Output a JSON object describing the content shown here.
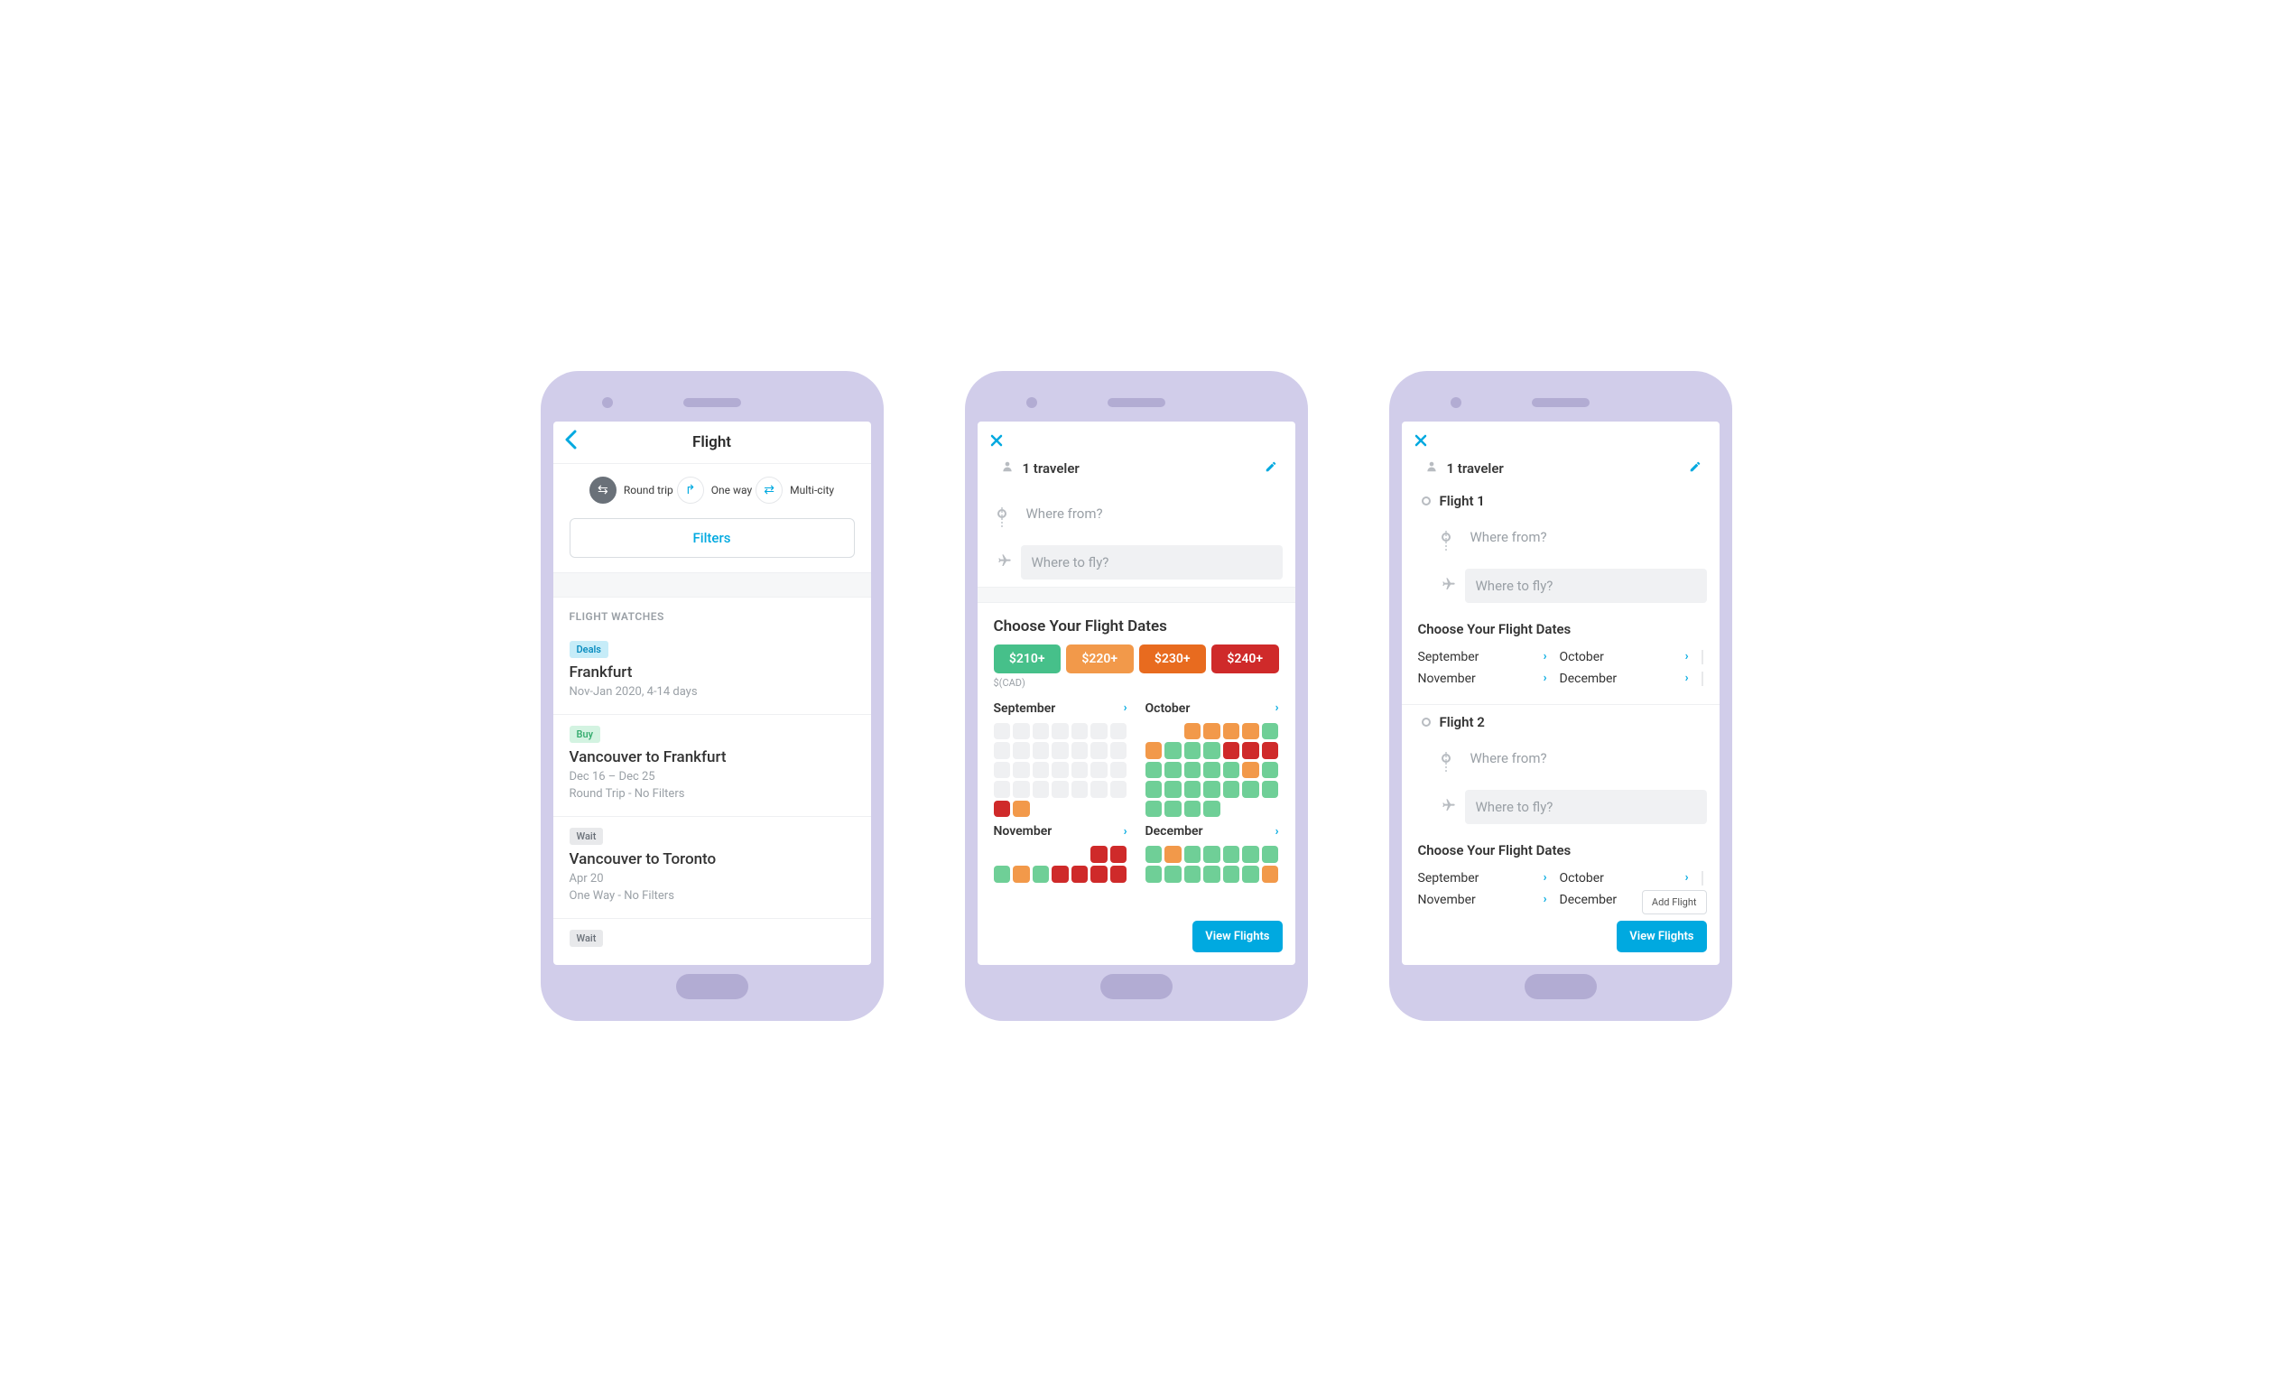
{
  "colors": {
    "accent": "#00a9e0",
    "phone_body": "#d1cdea",
    "phone_shadow": "#b2acd3",
    "cal_empty": "#eff0f2",
    "cal_green": "#6fcf97",
    "cal_orange": "#f2994a",
    "cal_red": "#cf2a2a",
    "badge_deals_bg": "#c6ecf8",
    "badge_buy_bg": "#d3f3e1",
    "badge_wait_bg": "#e8e9eb"
  },
  "screen1": {
    "title": "Flight",
    "trip_types": {
      "round": "Round trip",
      "oneway": "One way",
      "multi": "Multi-city"
    },
    "filters_label": "Filters",
    "watches_label": "FLIGHT WATCHES",
    "watches": [
      {
        "badge": "Deals",
        "badge_class": "badge-deals",
        "title": "Frankfurt",
        "sub1": "Nov-Jan 2020, 4-14 days",
        "sub2": ""
      },
      {
        "badge": "Buy",
        "badge_class": "badge-buy",
        "title": "Vancouver to Frankfurt",
        "sub1": "Dec 16 – Dec 25",
        "sub2": "Round Trip - No Filters"
      },
      {
        "badge": "Wait",
        "badge_class": "badge-wait",
        "title": "Vancouver to Toronto",
        "sub1": "Apr 20",
        "sub2": "One Way - No Filters"
      },
      {
        "badge": "Wait",
        "badge_class": "badge-wait",
        "title": "",
        "sub1": "",
        "sub2": ""
      }
    ]
  },
  "screen2": {
    "traveler": "1 traveler",
    "from_placeholder": "Where from?",
    "to_placeholder": "Where to fly?",
    "dates_title": "Choose Your Flight Dates",
    "currency_note": "$(CAD)",
    "price_chips": [
      {
        "label": "$210+",
        "color": "#46c08a"
      },
      {
        "label": "$220+",
        "color": "#f2994a"
      },
      {
        "label": "$230+",
        "color": "#e86b1f"
      },
      {
        "label": "$240+",
        "color": "#cf2a2a"
      }
    ],
    "months": [
      {
        "name": "September",
        "grid": [
          "e",
          "e",
          "e",
          "e",
          "e",
          "e",
          "e",
          "e",
          "e",
          "e",
          "e",
          "e",
          "e",
          "e",
          "e",
          "e",
          "e",
          "e",
          "e",
          "e",
          "e",
          "e",
          "e",
          "e",
          "e",
          "e",
          "e",
          "e",
          "r",
          "o",
          "b",
          "b",
          "b",
          "b",
          "b"
        ]
      },
      {
        "name": "October",
        "grid": [
          "b",
          "b",
          "o",
          "o",
          "o",
          "o",
          "g",
          "o",
          "g",
          "g",
          "g",
          "r",
          "r",
          "r",
          "g",
          "g",
          "g",
          "g",
          "g",
          "o",
          "g",
          "g",
          "g",
          "g",
          "g",
          "g",
          "g",
          "g",
          "g",
          "g",
          "g",
          "g",
          "b",
          "b",
          "b"
        ]
      },
      {
        "name": "November",
        "grid": [
          "b",
          "b",
          "b",
          "b",
          "b",
          "r",
          "r",
          "g",
          "o",
          "g",
          "r",
          "r",
          "r",
          "r"
        ]
      },
      {
        "name": "December",
        "grid": [
          "g",
          "o",
          "g",
          "g",
          "g",
          "g",
          "g",
          "g",
          "g",
          "g",
          "g",
          "g",
          "g",
          "o"
        ]
      }
    ],
    "view_btn": "View Flights"
  },
  "screen3": {
    "traveler": "1 traveler",
    "flight1_label": "Flight 1",
    "flight2_label": "Flight 2",
    "from_placeholder": "Where from?",
    "to_placeholder": "Where to fly?",
    "dates_title": "Choose Your Flight Dates",
    "months": [
      "September",
      "October",
      "November",
      "December"
    ],
    "add_flight": "Add Flight",
    "view_btn": "View Flights"
  }
}
